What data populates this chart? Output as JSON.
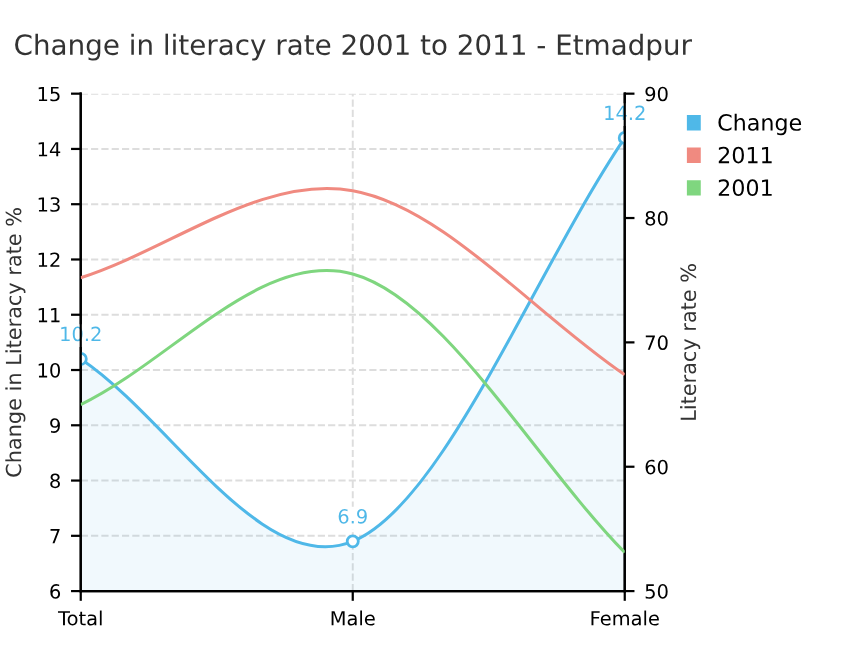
{
  "chart_data": {
    "type": "line",
    "title": "Change in literacy rate 2001 to 2011 - Etmadpur",
    "categories": [
      "Total",
      "Male",
      "Female"
    ],
    "ylabel": "Change in Literacy rate %",
    "y2label": "Literacy rate %",
    "ylim": [
      6,
      15
    ],
    "yticks": [
      6,
      7,
      8,
      9,
      10,
      11,
      12,
      13,
      14,
      15
    ],
    "y2lim": [
      50,
      90
    ],
    "y2ticks": [
      50,
      60,
      70,
      80,
      90
    ],
    "grid": true,
    "legend": "top right",
    "series": [
      {
        "name": "Change",
        "type": "area",
        "color": "#4fb8e8",
        "values": [
          10.2,
          6.9,
          14.2
        ],
        "value_labels": [
          "10.2",
          "6.9",
          "14.2"
        ],
        "marker": "circle"
      },
      {
        "name": "2011",
        "color": "#f08a80",
        "values": [
          75.2,
          82.2,
          67.4
        ],
        "axis": "y2"
      },
      {
        "name": "2001",
        "color": "#7fd67f",
        "values": [
          65.0,
          75.5,
          53.1
        ],
        "axis": "y2"
      }
    ]
  }
}
